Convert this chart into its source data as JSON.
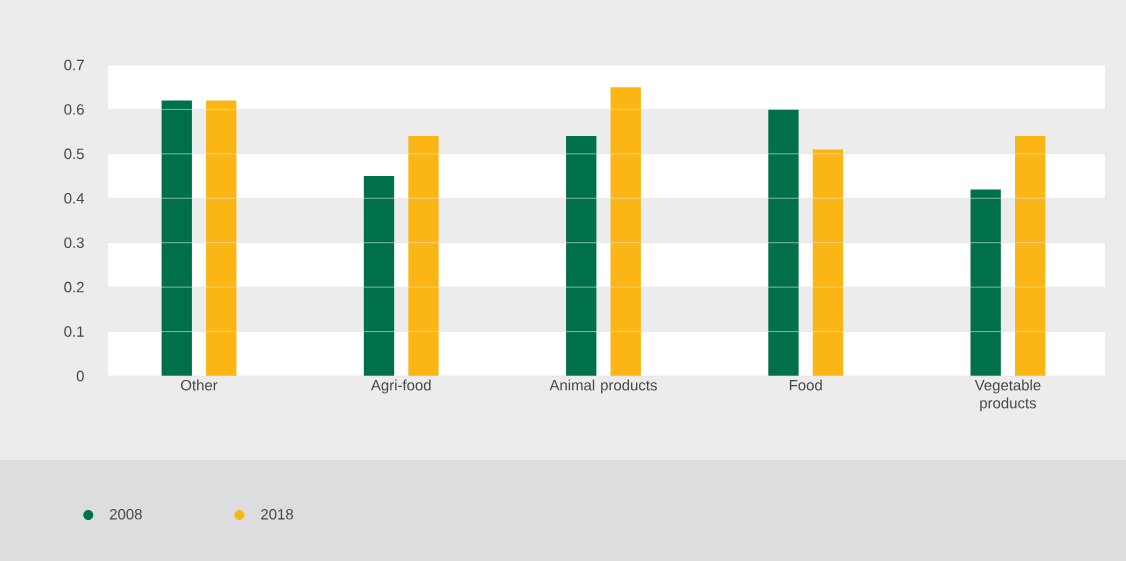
{
  "chart_data": {
    "type": "bar",
    "categories": [
      "Other",
      "Agri-food",
      "Animal products",
      "Food",
      "Vegetable products"
    ],
    "series": [
      {
        "name": "2008",
        "color": "#00704a",
        "values": [
          0.62,
          0.45,
          0.54,
          0.6,
          0.42
        ]
      },
      {
        "name": "2018",
        "color": "#fbb616",
        "values": [
          0.62,
          0.54,
          0.65,
          0.51,
          0.54
        ]
      }
    ],
    "ylim": [
      0,
      0.7
    ],
    "yticks": [
      0,
      0.1,
      0.2,
      0.3,
      0.4,
      0.5,
      0.6,
      0.7
    ],
    "grid": "y",
    "legend": "bottom"
  }
}
